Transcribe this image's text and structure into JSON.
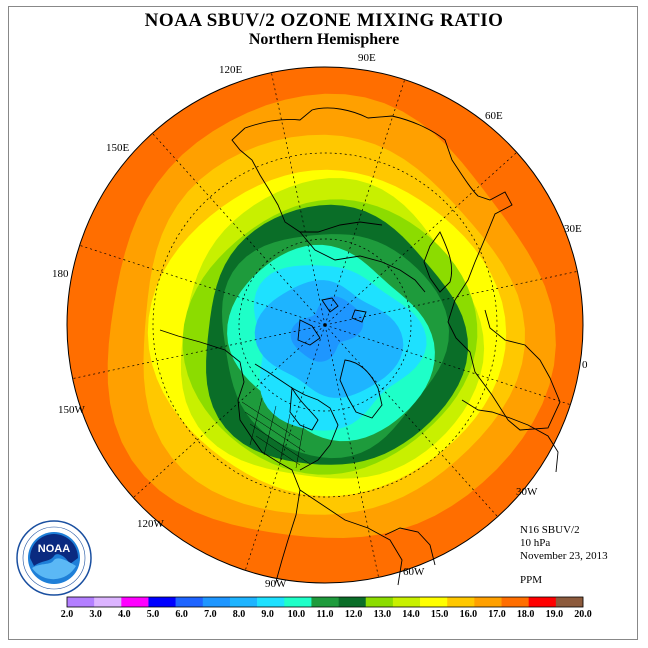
{
  "title": "NOAA SBUV/2 OZONE MIXING RATIO",
  "subtitle": "Northern Hemisphere",
  "longitude_labels": {
    "l90e": "90E",
    "l120e": "120E",
    "l60e": "60E",
    "l150e": "150E",
    "l30e": "30E",
    "l180": "180",
    "l0": "0",
    "l150w": "150W",
    "l30w": "30W",
    "l120w": "120W",
    "l60w": "60W",
    "l90w": "90W"
  },
  "info": {
    "instrument": "N16 SBUV/2",
    "level": "10 hPa",
    "date": "November 23, 2013",
    "units": "PPM"
  },
  "logo": {
    "text": "NOAA",
    "ring_text": "NATIONAL OCEANIC AND ATMOSPHERIC ADMINISTRATION · U.S. DEPARTMENT OF COMMERCE"
  },
  "colorbar": {
    "ticks": [
      "2.0",
      "3.0",
      "4.0",
      "5.0",
      "6.0",
      "7.0",
      "8.0",
      "9.0",
      "10.0",
      "11.0",
      "12.0",
      "13.0",
      "14.0",
      "15.0",
      "16.0",
      "17.0",
      "18.0",
      "19.0",
      "20.0"
    ],
    "colors": [
      "#b37fff",
      "#dcb4ff",
      "#ff00ff",
      "#0000ff",
      "#1e64ff",
      "#1e96ff",
      "#1eb4ff",
      "#1ee1ff",
      "#1effc8",
      "#1e9b3c",
      "#0a6e28",
      "#8cdc00",
      "#c8f000",
      "#ffff00",
      "#ffc800",
      "#ffa000",
      "#ff6e00",
      "#ff0000",
      "#8c5a3c"
    ]
  },
  "map_colors": {
    "ocean_bg": "#ffffff",
    "outer_band": "#ff6e00",
    "band_17": "#ffa000",
    "band_16": "#ffc800",
    "band_15": "#ffff00",
    "band_14": "#c8f000",
    "band_13": "#8cdc00",
    "band_12": "#0a6e28",
    "band_11": "#1e9b3c",
    "band_10": "#1effc8",
    "band_9": "#1ee1ff",
    "band_8": "#1eb4ff",
    "band_7": "#1e96ff"
  }
}
